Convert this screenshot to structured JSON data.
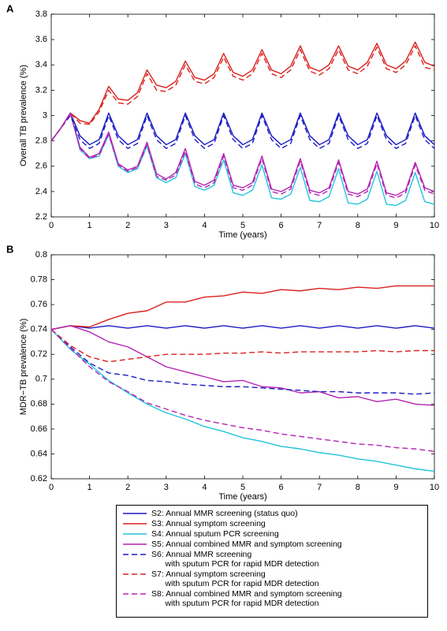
{
  "chart_data": [
    {
      "type": "line",
      "panel_label": "A",
      "y_label": "Overall TB prevalence (%)",
      "x_label": "Time (years)",
      "xlim": [
        0,
        10
      ],
      "xticks": [
        0,
        1,
        2,
        3,
        4,
        5,
        6,
        7,
        8,
        9,
        10
      ],
      "ylim": [
        2.2,
        3.8
      ],
      "yticks": [
        2.2,
        2.4,
        2.6,
        2.8,
        3,
        3.2,
        3.4,
        3.6,
        3.8
      ],
      "x": [
        0,
        0.25,
        0.5,
        0.75,
        1,
        1.25,
        1.5,
        1.75,
        2,
        2.25,
        2.5,
        2.75,
        3,
        3.25,
        3.5,
        3.75,
        4,
        4.25,
        4.5,
        4.75,
        5,
        5.25,
        5.5,
        5.75,
        6,
        6.25,
        6.5,
        6.75,
        7,
        7.25,
        7.5,
        7.75,
        8,
        8.25,
        8.5,
        8.75,
        9,
        9.25,
        9.5,
        9.75,
        10
      ],
      "series": [
        {
          "name": "S2: Annual MMR screening (status quo)",
          "color": "#1c1cc4",
          "linestyle": "solid",
          "values": [
            2.8,
            2.9,
            3.02,
            2.84,
            2.77,
            2.81,
            3.02,
            2.84,
            2.77,
            2.81,
            3.02,
            2.84,
            2.77,
            2.81,
            3.02,
            2.84,
            2.77,
            2.81,
            3.02,
            2.84,
            2.77,
            2.81,
            3.02,
            2.84,
            2.77,
            2.81,
            3.02,
            2.84,
            2.77,
            2.81,
            3.02,
            2.84,
            2.77,
            2.81,
            3.02,
            2.84,
            2.77,
            2.81,
            3.02,
            2.84,
            2.77
          ]
        },
        {
          "name": "S3: Annual symptom screening",
          "color": "#d9201e",
          "linestyle": "solid",
          "values": [
            2.8,
            2.9,
            3.02,
            2.96,
            2.94,
            3.05,
            3.23,
            3.13,
            3.12,
            3.18,
            3.36,
            3.24,
            3.22,
            3.27,
            3.43,
            3.3,
            3.28,
            3.33,
            3.49,
            3.34,
            3.31,
            3.36,
            3.52,
            3.36,
            3.33,
            3.39,
            3.55,
            3.38,
            3.35,
            3.4,
            3.55,
            3.39,
            3.36,
            3.42,
            3.57,
            3.4,
            3.37,
            3.43,
            3.58,
            3.42,
            3.39
          ]
        },
        {
          "name": "S4: Annual sputum PCR screening",
          "color": "#22c4dc",
          "linestyle": "solid",
          "values": [
            2.8,
            2.9,
            3.02,
            2.73,
            2.66,
            2.68,
            2.85,
            2.6,
            2.55,
            2.58,
            2.76,
            2.51,
            2.47,
            2.51,
            2.7,
            2.44,
            2.41,
            2.45,
            2.65,
            2.39,
            2.37,
            2.41,
            2.61,
            2.35,
            2.34,
            2.38,
            2.59,
            2.33,
            2.32,
            2.36,
            2.58,
            2.31,
            2.3,
            2.34,
            2.56,
            2.3,
            2.29,
            2.33,
            2.55,
            2.32,
            2.3
          ]
        },
        {
          "name": "S5: Annual combined MMR and symptom screening",
          "color": "#b424b4",
          "linestyle": "solid",
          "values": [
            2.8,
            2.9,
            3.02,
            2.75,
            2.67,
            2.7,
            2.87,
            2.62,
            2.57,
            2.6,
            2.79,
            2.54,
            2.5,
            2.55,
            2.74,
            2.48,
            2.45,
            2.49,
            2.7,
            2.45,
            2.43,
            2.47,
            2.68,
            2.42,
            2.4,
            2.44,
            2.66,
            2.41,
            2.39,
            2.43,
            2.65,
            2.4,
            2.38,
            2.42,
            2.64,
            2.39,
            2.37,
            2.41,
            2.63,
            2.43,
            2.4
          ]
        },
        {
          "name": "S6: Annual MMR screening\n      with sputum PCR for rapid MDR detection",
          "color": "#1c1cc4",
          "linestyle": "dashed",
          "values": [
            2.8,
            2.9,
            3.0,
            2.81,
            2.74,
            2.78,
            3.0,
            2.81,
            2.74,
            2.78,
            3.0,
            2.81,
            2.74,
            2.78,
            3.0,
            2.81,
            2.74,
            2.78,
            3.0,
            2.81,
            2.74,
            2.78,
            3.0,
            2.81,
            2.74,
            2.78,
            3.0,
            2.81,
            2.74,
            2.78,
            3.0,
            2.81,
            2.74,
            2.78,
            3.0,
            2.81,
            2.74,
            2.78,
            3.0,
            2.81,
            2.74
          ]
        },
        {
          "name": "S7: Annual symptom screening\n      with sputum PCR for rapid MDR detection",
          "color": "#d9201e",
          "linestyle": "dashed",
          "values": [
            2.8,
            2.9,
            3.02,
            2.94,
            2.93,
            3.03,
            3.2,
            3.1,
            3.09,
            3.15,
            3.33,
            3.2,
            3.19,
            3.24,
            3.4,
            3.27,
            3.25,
            3.3,
            3.46,
            3.31,
            3.28,
            3.33,
            3.49,
            3.33,
            3.3,
            3.36,
            3.52,
            3.35,
            3.32,
            3.37,
            3.52,
            3.36,
            3.33,
            3.39,
            3.54,
            3.37,
            3.34,
            3.4,
            3.55,
            3.38,
            3.36
          ]
        },
        {
          "name": "S8: Annual combined MMR and symptom screening\n      with sputum PCR for rapid MDR detection",
          "color": "#b424b4",
          "linestyle": "dashed",
          "values": [
            2.8,
            2.9,
            3.02,
            2.74,
            2.66,
            2.69,
            2.85,
            2.61,
            2.56,
            2.59,
            2.77,
            2.52,
            2.49,
            2.53,
            2.72,
            2.46,
            2.43,
            2.47,
            2.68,
            2.43,
            2.41,
            2.45,
            2.66,
            2.4,
            2.38,
            2.42,
            2.64,
            2.39,
            2.37,
            2.41,
            2.63,
            2.38,
            2.36,
            2.4,
            2.62,
            2.37,
            2.35,
            2.39,
            2.61,
            2.41,
            2.38
          ]
        }
      ]
    },
    {
      "type": "line",
      "panel_label": "B",
      "y_label": "MDR−TB prevalence (%)",
      "x_label": "Time (years)",
      "xlim": [
        0,
        10
      ],
      "xticks": [
        0,
        1,
        2,
        3,
        4,
        5,
        6,
        7,
        8,
        9,
        10
      ],
      "ylim": [
        0.62,
        0.8
      ],
      "yticks": [
        0.62,
        0.64,
        0.66,
        0.68,
        0.7,
        0.72,
        0.74,
        0.76,
        0.78,
        0.8
      ],
      "x": [
        0,
        0.5,
        1,
        1.5,
        2,
        2.5,
        3,
        3.5,
        4,
        4.5,
        5,
        5.5,
        6,
        6.5,
        7,
        7.5,
        8,
        8.5,
        9,
        9.5,
        10
      ],
      "series": [
        {
          "color": "#1c1cc4",
          "linestyle": "solid",
          "values": [
            0.74,
            0.743,
            0.741,
            0.743,
            0.741,
            0.743,
            0.741,
            0.743,
            0.741,
            0.743,
            0.741,
            0.743,
            0.741,
            0.743,
            0.741,
            0.743,
            0.741,
            0.743,
            0.741,
            0.743,
            0.741
          ]
        },
        {
          "color": "#d9201e",
          "linestyle": "solid",
          "values": [
            0.74,
            0.743,
            0.742,
            0.748,
            0.753,
            0.755,
            0.762,
            0.762,
            0.766,
            0.767,
            0.77,
            0.769,
            0.772,
            0.771,
            0.773,
            0.772,
            0.774,
            0.773,
            0.775,
            0.775,
            0.775
          ]
        },
        {
          "color": "#22c4dc",
          "linestyle": "solid",
          "values": [
            0.74,
            0.724,
            0.712,
            0.699,
            0.689,
            0.68,
            0.673,
            0.668,
            0.662,
            0.658,
            0.653,
            0.65,
            0.646,
            0.644,
            0.641,
            0.639,
            0.636,
            0.634,
            0.631,
            0.628,
            0.626
          ]
        },
        {
          "color": "#b424b4",
          "linestyle": "solid",
          "values": [
            0.74,
            0.743,
            0.738,
            0.73,
            0.726,
            0.718,
            0.71,
            0.706,
            0.702,
            0.698,
            0.699,
            0.694,
            0.693,
            0.689,
            0.69,
            0.685,
            0.686,
            0.682,
            0.684,
            0.68,
            0.679
          ]
        },
        {
          "color": "#1c1cc4",
          "linestyle": "dashed",
          "values": [
            0.74,
            0.726,
            0.713,
            0.705,
            0.703,
            0.699,
            0.698,
            0.696,
            0.695,
            0.694,
            0.694,
            0.693,
            0.692,
            0.691,
            0.69,
            0.69,
            0.689,
            0.689,
            0.689,
            0.688,
            0.689
          ]
        },
        {
          "color": "#d9201e",
          "linestyle": "dashed",
          "values": [
            0.74,
            0.727,
            0.718,
            0.714,
            0.716,
            0.718,
            0.72,
            0.72,
            0.72,
            0.721,
            0.721,
            0.722,
            0.721,
            0.722,
            0.722,
            0.722,
            0.722,
            0.723,
            0.722,
            0.723,
            0.723
          ]
        },
        {
          "color": "#b424b4",
          "linestyle": "dashed",
          "values": [
            0.74,
            0.725,
            0.71,
            0.698,
            0.69,
            0.681,
            0.676,
            0.671,
            0.667,
            0.664,
            0.661,
            0.659,
            0.656,
            0.654,
            0.652,
            0.65,
            0.648,
            0.647,
            0.645,
            0.644,
            0.642
          ]
        }
      ]
    }
  ]
}
